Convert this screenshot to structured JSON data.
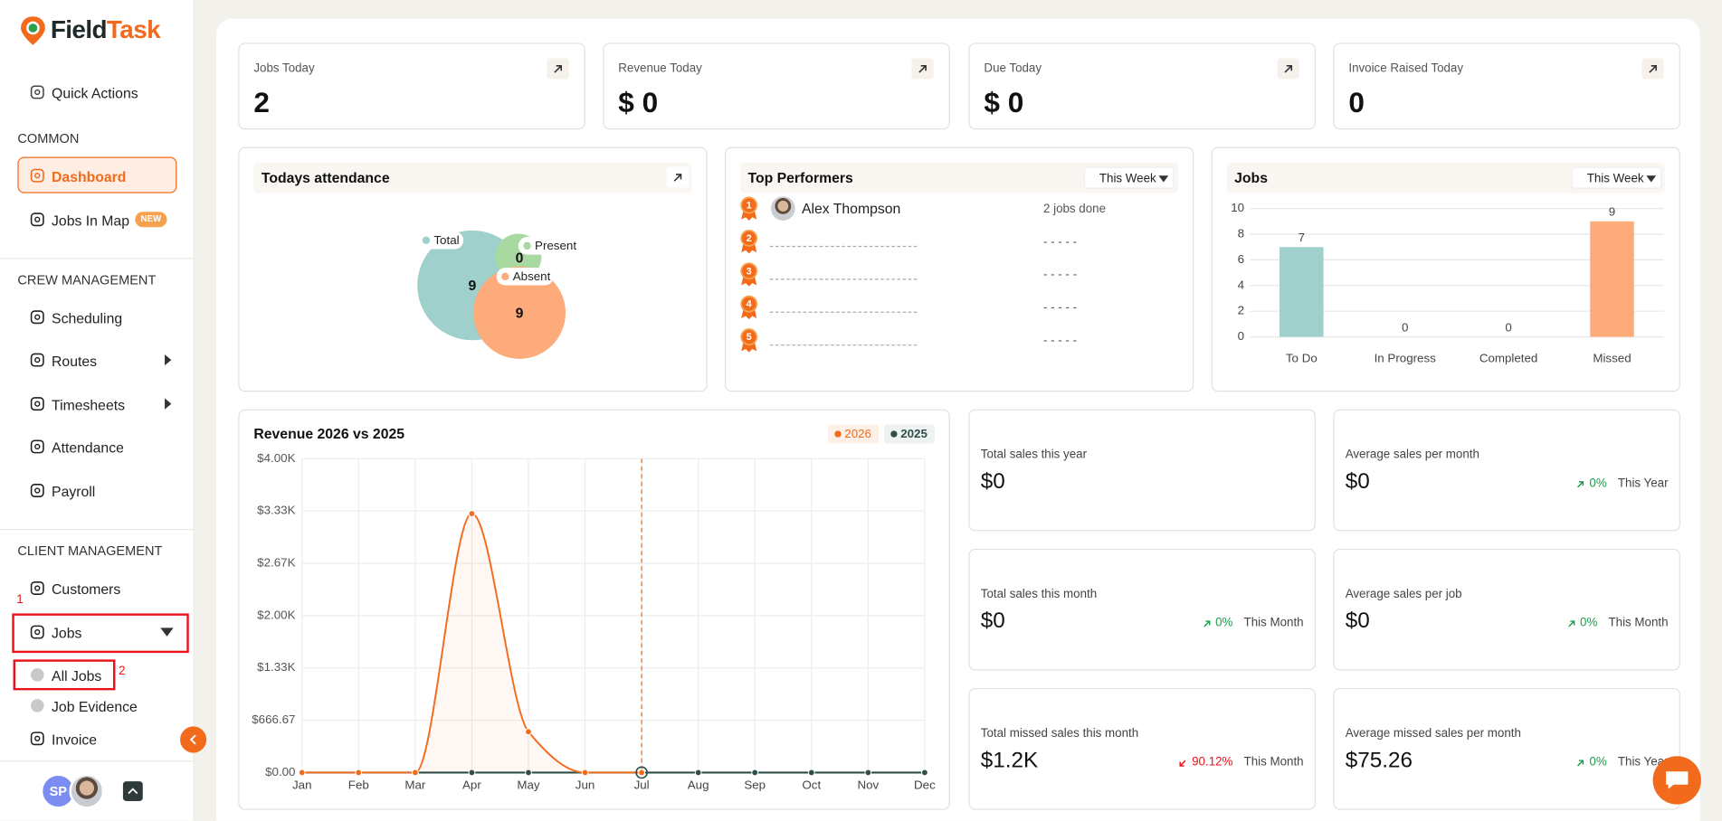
{
  "sidebar": {
    "logo": {
      "part1": "Field",
      "part2": "Task"
    },
    "quick_actions": "Quick Actions",
    "sections": [
      {
        "title": "COMMON",
        "items": [
          {
            "label": "Dashboard",
            "active": true
          },
          {
            "label": "Jobs In Map",
            "badge": "NEW"
          }
        ]
      },
      {
        "title": "CREW MANAGEMENT",
        "items": [
          {
            "label": "Scheduling"
          },
          {
            "label": "Routes",
            "expandable": true
          },
          {
            "label": "Timesheets",
            "expandable": true
          },
          {
            "label": "Attendance"
          },
          {
            "label": "Payroll"
          }
        ]
      },
      {
        "title": "CLIENT MANAGEMENT",
        "items": [
          {
            "label": "Customers"
          },
          {
            "label": "Jobs",
            "expanded": true,
            "annotation": "1",
            "children": [
              {
                "label": "All Jobs",
                "annotation": "2"
              },
              {
                "label": "Job Evidence"
              }
            ]
          },
          {
            "label": "Invoice"
          }
        ]
      }
    ],
    "user_initials": "SP"
  },
  "stats": [
    {
      "label": "Jobs Today",
      "value": 2
    },
    {
      "label": "Revenue Today",
      "value": "$ 0"
    },
    {
      "label": "Due Today",
      "value": "$ 0"
    },
    {
      "label": "Invoice Raised Today",
      "value": 0
    }
  ],
  "attendance": {
    "title": "Todays attendance",
    "chart": {
      "type": "venn",
      "series": [
        {
          "name": "Total",
          "value": 9,
          "color": "#9fd0cb"
        },
        {
          "name": "Present",
          "value": 0,
          "color": "#a8d9a0"
        },
        {
          "name": "Absent",
          "value": 9,
          "color": "#fdab7b"
        }
      ]
    }
  },
  "top_performers": {
    "title": "Top Performers",
    "period": "This Week",
    "rows": [
      {
        "rank": 1,
        "name": "Alex Thompson",
        "jobs": "2 jobs done"
      },
      {
        "rank": 2,
        "jobs": "- - - - -"
      },
      {
        "rank": 3,
        "jobs": "- - - - -"
      },
      {
        "rank": 4,
        "jobs": "- - - - -"
      },
      {
        "rank": 5,
        "jobs": "- - - - -"
      }
    ]
  },
  "jobs": {
    "title": "Jobs",
    "period": "This Week",
    "chart": {
      "type": "bar",
      "categories": [
        "To Do",
        "In Progress",
        "Completed",
        "Missed"
      ],
      "values": [
        7,
        0,
        0,
        9
      ],
      "colors": [
        "#9fd0cb",
        "#9fd0cb",
        "#9fd0cb",
        "#fdab7b"
      ],
      "ylim": [
        0,
        10
      ],
      "yticks": [
        0,
        2,
        4,
        6,
        8,
        10
      ],
      "grid": true
    }
  },
  "revenue": {
    "title": "Revenue 2026 vs 2025",
    "chart": {
      "type": "line",
      "categories": [
        "Jan",
        "Feb",
        "Mar",
        "Apr",
        "May",
        "Jun",
        "Jul",
        "Aug",
        "Sep",
        "Oct",
        "Nov",
        "Dec"
      ],
      "series": [
        {
          "name": "2026",
          "color": "#f26b1d",
          "area": true,
          "values": [
            0,
            0,
            0,
            3300,
            520,
            0,
            0,
            null,
            null,
            null,
            null,
            null
          ]
        },
        {
          "name": "2025",
          "color": "#2d4f4a",
          "values": [
            0,
            0,
            0,
            0,
            0,
            0,
            0,
            0,
            0,
            0,
            0,
            0
          ]
        }
      ],
      "ylim": [
        0,
        4000
      ],
      "yticks": [
        {
          "value": 0,
          "label": "$0.00"
        },
        {
          "value": 666.67,
          "label": "$666.67"
        },
        {
          "value": 1333.33,
          "label": "$1.33K"
        },
        {
          "value": 2000,
          "label": "$2.00K"
        },
        {
          "value": 2666.67,
          "label": "$2.67K"
        },
        {
          "value": 3333.33,
          "label": "$3.33K"
        },
        {
          "value": 4000,
          "label": "$4.00K"
        }
      ],
      "grid": true
    }
  },
  "sales": [
    {
      "label": "Total sales this year",
      "value": "$0"
    },
    {
      "label": "Average sales per month",
      "value": "$0",
      "change": "0%",
      "trend": "up",
      "period": "This Year"
    },
    {
      "label": "Total sales this month",
      "value": "$0",
      "change": "0%",
      "trend": "up",
      "period": "This Month"
    },
    {
      "label": "Average sales per job",
      "value": "$0",
      "change": "0%",
      "trend": "up",
      "period": "This Month"
    },
    {
      "label": "Total missed sales this month",
      "value": "$1.2K",
      "change": "90.12%",
      "trend": "down",
      "period": "This Month"
    },
    {
      "label": "Average missed sales per month",
      "value": "$75.26",
      "change": "0%",
      "trend": "up",
      "period": "This Year"
    }
  ]
}
